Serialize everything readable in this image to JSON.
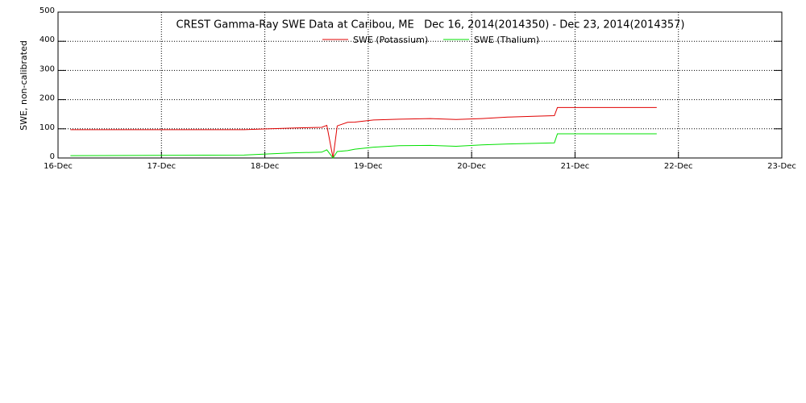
{
  "chart_data": {
    "type": "line",
    "title": "CREST Gamma-Ray SWE Data at Caribou, ME   Dec 16, 2014(2014350) - Dec 23, 2014(2014357)",
    "y_label": "SWE, non-calibrated",
    "x": [
      16.12,
      17.8,
      18.05,
      18.3,
      18.55,
      18.6,
      18.66,
      18.7,
      18.8,
      18.87,
      19.05,
      19.3,
      19.6,
      19.85,
      20.1,
      20.35,
      20.6,
      20.8,
      20.83,
      21.79
    ],
    "series": [
      {
        "name": "SWE (Potassium)",
        "color": "#e00000",
        "values": [
          97,
          97,
          100,
          103,
          105,
          112,
          0,
          110,
          122,
          123,
          130,
          133,
          135,
          132,
          135,
          140,
          143,
          145,
          173,
          173
        ]
      },
      {
        "name": "SWE (Thalium)",
        "color": "#00e000",
        "values": [
          8,
          10,
          14,
          18,
          20,
          28,
          0,
          22,
          25,
          30,
          37,
          42,
          43,
          40,
          45,
          48,
          50,
          52,
          83,
          83
        ]
      }
    ],
    "xlim": [
      16,
      23
    ],
    "xticks": [
      {
        "value": 16,
        "label": "16-Dec"
      },
      {
        "value": 17,
        "label": "17-Dec"
      },
      {
        "value": 18,
        "label": "18-Dec"
      },
      {
        "value": 19,
        "label": "19-Dec"
      },
      {
        "value": 20,
        "label": "20-Dec"
      },
      {
        "value": 21,
        "label": "21-Dec"
      },
      {
        "value": 22,
        "label": "22-Dec"
      },
      {
        "value": 23,
        "label": "23-Dec"
      }
    ],
    "ylim": [
      0,
      500
    ],
    "yticks": [
      0,
      100,
      200,
      300,
      400,
      500
    ],
    "grid": true
  }
}
